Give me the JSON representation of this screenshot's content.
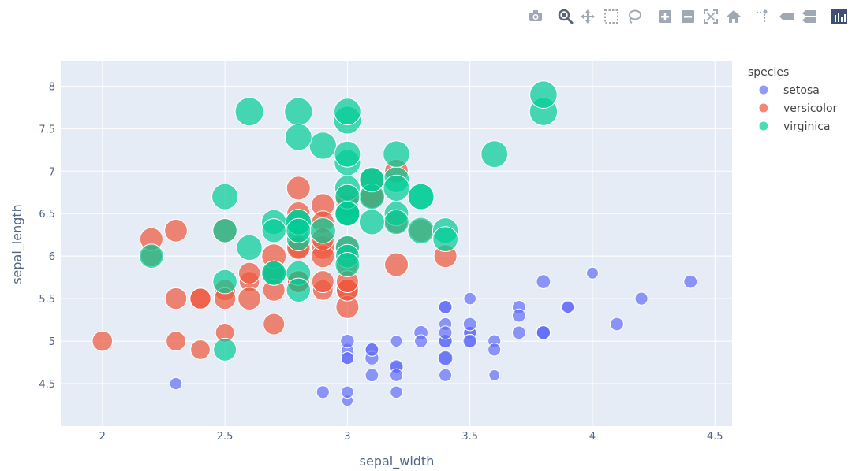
{
  "modebar": {
    "buttons": [
      {
        "name": "camera-icon",
        "x": 679
      },
      {
        "name": "zoom-icon",
        "x": 717,
        "active": true
      },
      {
        "name": "pan-icon",
        "x": 745
      },
      {
        "name": "box-select-icon",
        "x": 775
      },
      {
        "name": "lasso-icon",
        "x": 804
      },
      {
        "name": "zoom-in-icon",
        "x": 843
      },
      {
        "name": "zoom-out-icon",
        "x": 872
      },
      {
        "name": "autoscale-icon",
        "x": 901
      },
      {
        "name": "reset-axes-icon",
        "x": 930
      },
      {
        "name": "spike-lines-icon",
        "x": 965
      },
      {
        "name": "hover-closest-icon",
        "x": 997
      },
      {
        "name": "hover-compare-icon",
        "x": 1026
      },
      {
        "name": "plotly-logo-icon",
        "x": 1064
      }
    ]
  },
  "colors": {
    "setosa": "#636efa",
    "versicolor": "#ef553b",
    "virginica": "#00cc96",
    "plot_bg": "#e5ecf6",
    "grid": "#ffffff",
    "text": "#506784",
    "icon": "#a0a8b4",
    "icon_active": "#5a6478"
  },
  "chart_data": {
    "type": "scatter",
    "xlabel": "sepal_width",
    "ylabel": "sepal_length",
    "xlim": [
      1.83,
      4.57
    ],
    "ylim": [
      4.0,
      8.3
    ],
    "xticks": [
      2,
      2.5,
      3,
      3.5,
      4,
      4.5
    ],
    "yticks": [
      4.5,
      5,
      5.5,
      6,
      6.5,
      7,
      7.5,
      8
    ],
    "xtick_labels": [
      "2",
      "2.5",
      "3",
      "3.5",
      "4",
      "4.5"
    ],
    "ytick_labels": [
      "4.5",
      "5",
      "5.5",
      "6",
      "6.5",
      "7",
      "7.5",
      "8"
    ],
    "grid": true,
    "size_encoding": "petal_length",
    "legend": {
      "title": "species",
      "position": "right"
    },
    "series": [
      {
        "name": "setosa",
        "points": [
          [
            3.5,
            5.1,
            1.4
          ],
          [
            3.0,
            4.9,
            1.4
          ],
          [
            3.2,
            4.7,
            1.3
          ],
          [
            3.1,
            4.6,
            1.5
          ],
          [
            3.6,
            5.0,
            1.4
          ],
          [
            3.9,
            5.4,
            1.7
          ],
          [
            3.4,
            4.6,
            1.4
          ],
          [
            3.4,
            5.0,
            1.5
          ],
          [
            2.9,
            4.4,
            1.4
          ],
          [
            3.1,
            4.9,
            1.5
          ],
          [
            3.7,
            5.4,
            1.5
          ],
          [
            3.4,
            4.8,
            1.6
          ],
          [
            3.0,
            4.8,
            1.4
          ],
          [
            3.0,
            4.3,
            1.1
          ],
          [
            4.0,
            5.8,
            1.2
          ],
          [
            4.4,
            5.7,
            1.5
          ],
          [
            3.9,
            5.4,
            1.3
          ],
          [
            3.5,
            5.1,
            1.4
          ],
          [
            3.8,
            5.7,
            1.7
          ],
          [
            3.8,
            5.1,
            1.5
          ],
          [
            3.4,
            5.4,
            1.7
          ],
          [
            3.7,
            5.1,
            1.5
          ],
          [
            3.6,
            4.6,
            1.0
          ],
          [
            3.3,
            5.1,
            1.7
          ],
          [
            3.4,
            4.8,
            1.9
          ],
          [
            3.0,
            5.0,
            1.6
          ],
          [
            3.4,
            5.0,
            1.6
          ],
          [
            3.5,
            5.2,
            1.5
          ],
          [
            3.4,
            5.2,
            1.4
          ],
          [
            3.2,
            4.7,
            1.6
          ],
          [
            3.1,
            4.8,
            1.6
          ],
          [
            3.4,
            5.4,
            1.5
          ],
          [
            4.1,
            5.2,
            1.5
          ],
          [
            4.2,
            5.5,
            1.4
          ],
          [
            3.1,
            4.9,
            1.5
          ],
          [
            3.2,
            5.0,
            1.2
          ],
          [
            3.5,
            5.5,
            1.3
          ],
          [
            3.6,
            4.9,
            1.4
          ],
          [
            3.0,
            4.4,
            1.3
          ],
          [
            3.4,
            5.1,
            1.5
          ],
          [
            3.5,
            5.0,
            1.3
          ],
          [
            2.3,
            4.5,
            1.3
          ],
          [
            3.2,
            4.4,
            1.3
          ],
          [
            3.5,
            5.0,
            1.6
          ],
          [
            3.8,
            5.1,
            1.9
          ],
          [
            3.0,
            4.8,
            1.4
          ],
          [
            3.8,
            5.1,
            1.6
          ],
          [
            3.2,
            4.6,
            1.4
          ],
          [
            3.7,
            5.3,
            1.5
          ],
          [
            3.3,
            5.0,
            1.4
          ]
        ]
      },
      {
        "name": "versicolor",
        "points": [
          [
            3.2,
            7.0,
            4.7
          ],
          [
            3.2,
            6.4,
            4.5
          ],
          [
            3.1,
            6.9,
            4.9
          ],
          [
            2.3,
            5.5,
            4.0
          ],
          [
            2.8,
            6.5,
            4.6
          ],
          [
            2.8,
            5.7,
            4.5
          ],
          [
            3.3,
            6.3,
            4.7
          ],
          [
            2.4,
            4.9,
            3.3
          ],
          [
            2.9,
            6.6,
            4.6
          ],
          [
            2.7,
            5.2,
            3.9
          ],
          [
            2.0,
            5.0,
            3.5
          ],
          [
            3.0,
            5.9,
            4.2
          ],
          [
            2.2,
            6.0,
            4.0
          ],
          [
            2.9,
            6.1,
            4.7
          ],
          [
            2.9,
            5.6,
            3.6
          ],
          [
            3.1,
            6.7,
            4.4
          ],
          [
            3.0,
            5.6,
            4.5
          ],
          [
            2.7,
            5.8,
            4.1
          ],
          [
            2.2,
            6.2,
            4.5
          ],
          [
            2.5,
            5.6,
            3.9
          ],
          [
            3.2,
            5.9,
            4.8
          ],
          [
            2.8,
            6.1,
            4.0
          ],
          [
            2.5,
            6.3,
            4.9
          ],
          [
            2.8,
            6.1,
            4.7
          ],
          [
            2.9,
            6.4,
            4.3
          ],
          [
            3.0,
            6.6,
            4.4
          ],
          [
            2.8,
            6.8,
            4.8
          ],
          [
            3.0,
            6.7,
            5.0
          ],
          [
            2.9,
            6.0,
            4.5
          ],
          [
            2.6,
            5.7,
            3.5
          ],
          [
            2.4,
            5.5,
            3.8
          ],
          [
            2.4,
            5.5,
            3.7
          ],
          [
            2.7,
            5.8,
            3.9
          ],
          [
            2.7,
            6.0,
            5.1
          ],
          [
            3.0,
            5.4,
            4.5
          ],
          [
            3.4,
            6.0,
            4.5
          ],
          [
            3.1,
            6.7,
            4.7
          ],
          [
            2.3,
            6.3,
            4.4
          ],
          [
            3.0,
            5.6,
            4.1
          ],
          [
            2.5,
            5.5,
            4.0
          ],
          [
            2.6,
            5.5,
            4.4
          ],
          [
            3.0,
            6.1,
            4.6
          ],
          [
            2.6,
            5.8,
            4.0
          ],
          [
            2.3,
            5.0,
            3.3
          ],
          [
            2.7,
            5.6,
            4.2
          ],
          [
            3.0,
            5.7,
            4.2
          ],
          [
            2.9,
            5.7,
            4.2
          ],
          [
            2.9,
            6.2,
            4.3
          ],
          [
            2.5,
            5.1,
            3.0
          ],
          [
            2.8,
            5.7,
            4.1
          ]
        ]
      },
      {
        "name": "virginica",
        "points": [
          [
            3.3,
            6.3,
            6.0
          ],
          [
            2.7,
            5.8,
            5.1
          ],
          [
            3.0,
            7.1,
            5.9
          ],
          [
            2.9,
            6.3,
            5.6
          ],
          [
            3.0,
            6.5,
            5.8
          ],
          [
            3.0,
            7.6,
            6.6
          ],
          [
            2.5,
            4.9,
            4.5
          ],
          [
            2.9,
            7.3,
            6.3
          ],
          [
            2.5,
            6.7,
            5.8
          ],
          [
            3.6,
            7.2,
            6.1
          ],
          [
            3.2,
            6.5,
            5.1
          ],
          [
            2.7,
            6.4,
            5.3
          ],
          [
            3.0,
            6.8,
            5.5
          ],
          [
            2.5,
            5.7,
            5.0
          ],
          [
            2.8,
            5.8,
            5.1
          ],
          [
            3.2,
            6.4,
            5.3
          ],
          [
            3.0,
            6.5,
            5.5
          ],
          [
            3.8,
            7.7,
            6.7
          ],
          [
            2.6,
            7.7,
            6.9
          ],
          [
            2.2,
            6.0,
            5.0
          ],
          [
            3.2,
            6.9,
            5.7
          ],
          [
            2.8,
            5.6,
            4.9
          ],
          [
            2.8,
            7.7,
            6.7
          ],
          [
            2.7,
            6.3,
            4.9
          ],
          [
            3.3,
            6.7,
            5.7
          ],
          [
            3.2,
            7.2,
            6.0
          ],
          [
            2.8,
            6.2,
            4.8
          ],
          [
            3.0,
            6.1,
            4.9
          ],
          [
            2.8,
            6.4,
            5.6
          ],
          [
            3.0,
            7.2,
            5.8
          ],
          [
            2.8,
            7.4,
            6.1
          ],
          [
            3.8,
            7.9,
            6.4
          ],
          [
            2.8,
            6.4,
            5.6
          ],
          [
            2.8,
            6.3,
            5.1
          ],
          [
            2.6,
            6.1,
            5.6
          ],
          [
            3.0,
            7.7,
            6.1
          ],
          [
            3.4,
            6.3,
            5.6
          ],
          [
            3.1,
            6.4,
            5.5
          ],
          [
            3.0,
            6.0,
            4.8
          ],
          [
            3.1,
            6.9,
            5.4
          ],
          [
            3.1,
            6.7,
            5.6
          ],
          [
            3.1,
            6.9,
            5.1
          ],
          [
            2.7,
            5.8,
            5.1
          ],
          [
            3.2,
            6.8,
            5.9
          ],
          [
            3.3,
            6.7,
            5.7
          ],
          [
            3.0,
            6.7,
            5.2
          ],
          [
            2.5,
            6.3,
            5.0
          ],
          [
            3.0,
            6.5,
            5.2
          ],
          [
            3.4,
            6.2,
            5.4
          ],
          [
            3.0,
            5.9,
            5.1
          ]
        ]
      }
    ]
  }
}
